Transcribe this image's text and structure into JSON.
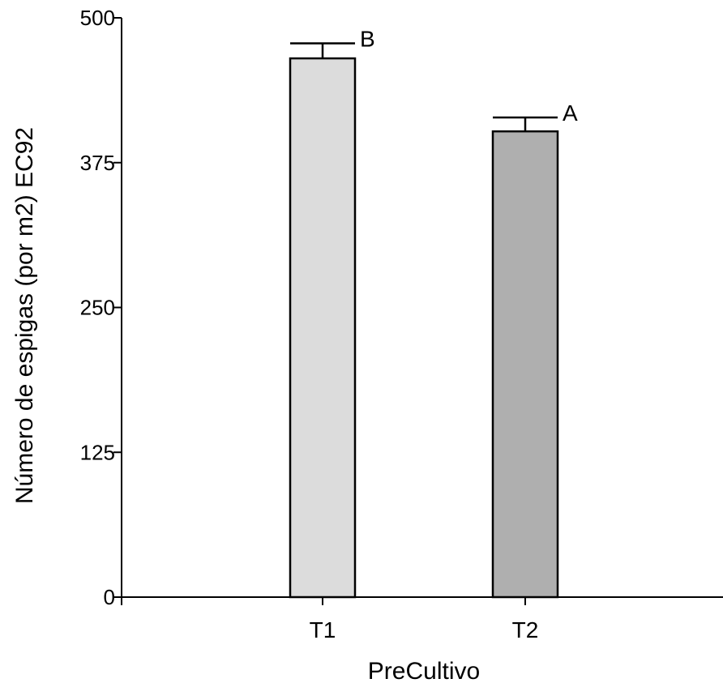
{
  "chart_data": {
    "type": "bar",
    "xlabel": "PreCultivo",
    "ylabel": "Número de espigas (por m2) EC92",
    "ylim": [
      0,
      500
    ],
    "yticks": [
      0,
      125,
      250,
      375,
      500
    ],
    "categories": [
      "T1",
      "T2"
    ],
    "values": [
      465,
      402
    ],
    "errors": [
      13,
      12
    ],
    "significance_labels": [
      "B",
      "A"
    ],
    "bar_colors": [
      "#dcdcdc",
      "#afafaf"
    ],
    "grid": false,
    "legend": "none"
  }
}
